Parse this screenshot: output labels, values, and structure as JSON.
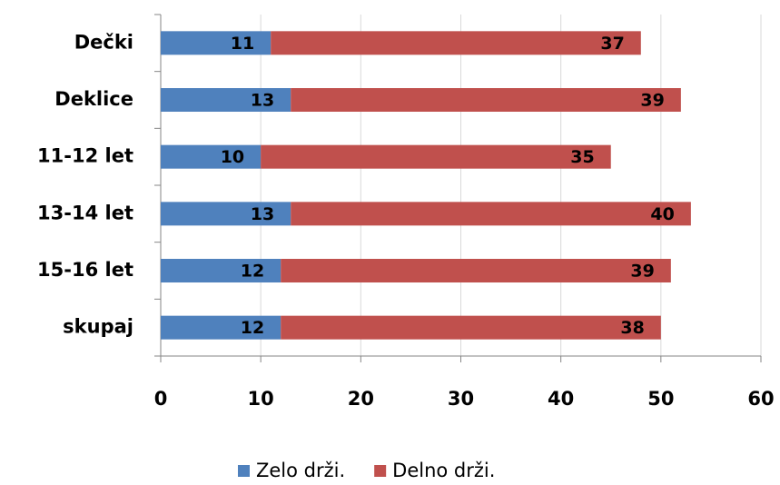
{
  "chart_data": {
    "type": "stacked-hbar",
    "categories": [
      "Dečki",
      "Deklice",
      "11-12 let",
      "13-14 let",
      "15-16 let",
      "skupaj"
    ],
    "series": [
      {
        "name": "Zelo drži.",
        "color": "#4f81bd",
        "values": [
          11,
          13,
          10,
          13,
          12,
          12
        ]
      },
      {
        "name": "Delno drži.",
        "color": "#c0504d",
        "values": [
          37,
          39,
          35,
          40,
          39,
          38
        ]
      }
    ],
    "xlim": [
      0,
      60
    ],
    "xticks": [
      0,
      10,
      20,
      30,
      40,
      50,
      60
    ],
    "grid": true,
    "legend": "bottom"
  }
}
